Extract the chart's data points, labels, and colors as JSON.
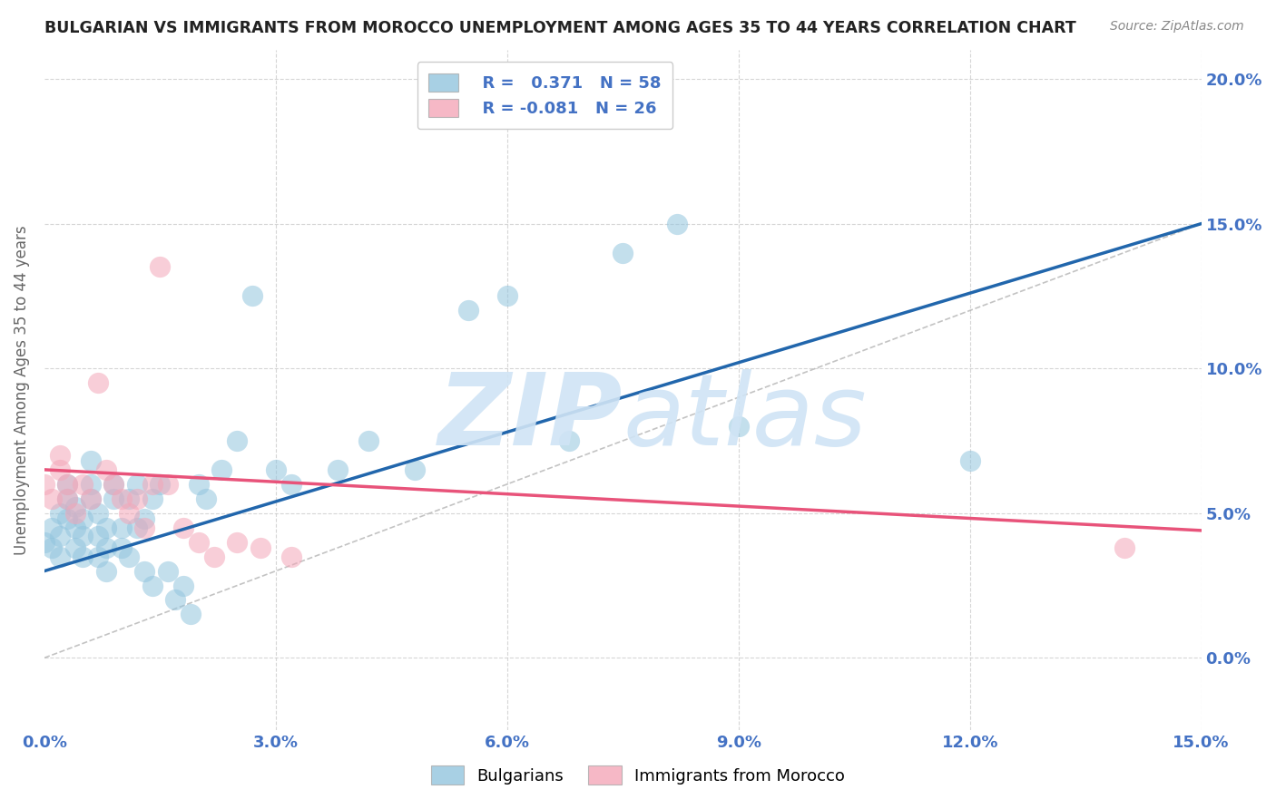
{
  "title": "BULGARIAN VS IMMIGRANTS FROM MOROCCO UNEMPLOYMENT AMONG AGES 35 TO 44 YEARS CORRELATION CHART",
  "source": "Source: ZipAtlas.com",
  "ylabel": "Unemployment Among Ages 35 to 44 years",
  "xlim": [
    0,
    0.15
  ],
  "ylim": [
    -0.025,
    0.21
  ],
  "xticks": [
    0.0,
    0.03,
    0.06,
    0.09,
    0.12,
    0.15
  ],
  "yticks": [
    0.0,
    0.05,
    0.1,
    0.15,
    0.2
  ],
  "blue_color": "#92c5de",
  "pink_color": "#f4a6b8",
  "blue_line_color": "#2166ac",
  "pink_line_color": "#e8537a",
  "watermark_color": "#d0e4f5",
  "grid_color": "#cccccc",
  "right_tick_color": "#4472c4",
  "axis_label_color": "#666666",
  "title_color": "#222222",
  "background_color": "#ffffff",
  "blue_dots_x": [
    0.0,
    0.001,
    0.001,
    0.002,
    0.002,
    0.002,
    0.003,
    0.003,
    0.003,
    0.004,
    0.004,
    0.004,
    0.005,
    0.005,
    0.005,
    0.006,
    0.006,
    0.006,
    0.007,
    0.007,
    0.007,
    0.008,
    0.008,
    0.008,
    0.009,
    0.009,
    0.01,
    0.01,
    0.011,
    0.011,
    0.012,
    0.012,
    0.013,
    0.013,
    0.014,
    0.014,
    0.015,
    0.016,
    0.017,
    0.018,
    0.019,
    0.02,
    0.021,
    0.023,
    0.025,
    0.027,
    0.03,
    0.032,
    0.038,
    0.042,
    0.048,
    0.055,
    0.06,
    0.068,
    0.075,
    0.082,
    0.09,
    0.12
  ],
  "blue_dots_y": [
    0.04,
    0.038,
    0.045,
    0.035,
    0.042,
    0.05,
    0.048,
    0.055,
    0.06,
    0.038,
    0.045,
    0.052,
    0.035,
    0.042,
    0.048,
    0.055,
    0.06,
    0.068,
    0.035,
    0.042,
    0.05,
    0.03,
    0.038,
    0.045,
    0.055,
    0.06,
    0.038,
    0.045,
    0.035,
    0.055,
    0.045,
    0.06,
    0.03,
    0.048,
    0.025,
    0.055,
    0.06,
    0.03,
    0.02,
    0.025,
    0.015,
    0.06,
    0.055,
    0.065,
    0.075,
    0.125,
    0.065,
    0.06,
    0.065,
    0.075,
    0.065,
    0.12,
    0.125,
    0.075,
    0.14,
    0.15,
    0.08,
    0.068
  ],
  "pink_dots_x": [
    0.0,
    0.001,
    0.002,
    0.002,
    0.003,
    0.003,
    0.004,
    0.005,
    0.006,
    0.007,
    0.008,
    0.009,
    0.01,
    0.011,
    0.012,
    0.013,
    0.014,
    0.015,
    0.016,
    0.018,
    0.02,
    0.022,
    0.025,
    0.028,
    0.032,
    0.14
  ],
  "pink_dots_y": [
    0.06,
    0.055,
    0.065,
    0.07,
    0.06,
    0.055,
    0.05,
    0.06,
    0.055,
    0.095,
    0.065,
    0.06,
    0.055,
    0.05,
    0.055,
    0.045,
    0.06,
    0.135,
    0.06,
    0.045,
    0.04,
    0.035,
    0.04,
    0.038,
    0.035,
    0.038
  ],
  "blue_line_y_start": 0.03,
  "blue_line_y_end": 0.15,
  "pink_line_y_start": 0.065,
  "pink_line_y_end": 0.044,
  "diag_line_color": "#aaaaaa"
}
